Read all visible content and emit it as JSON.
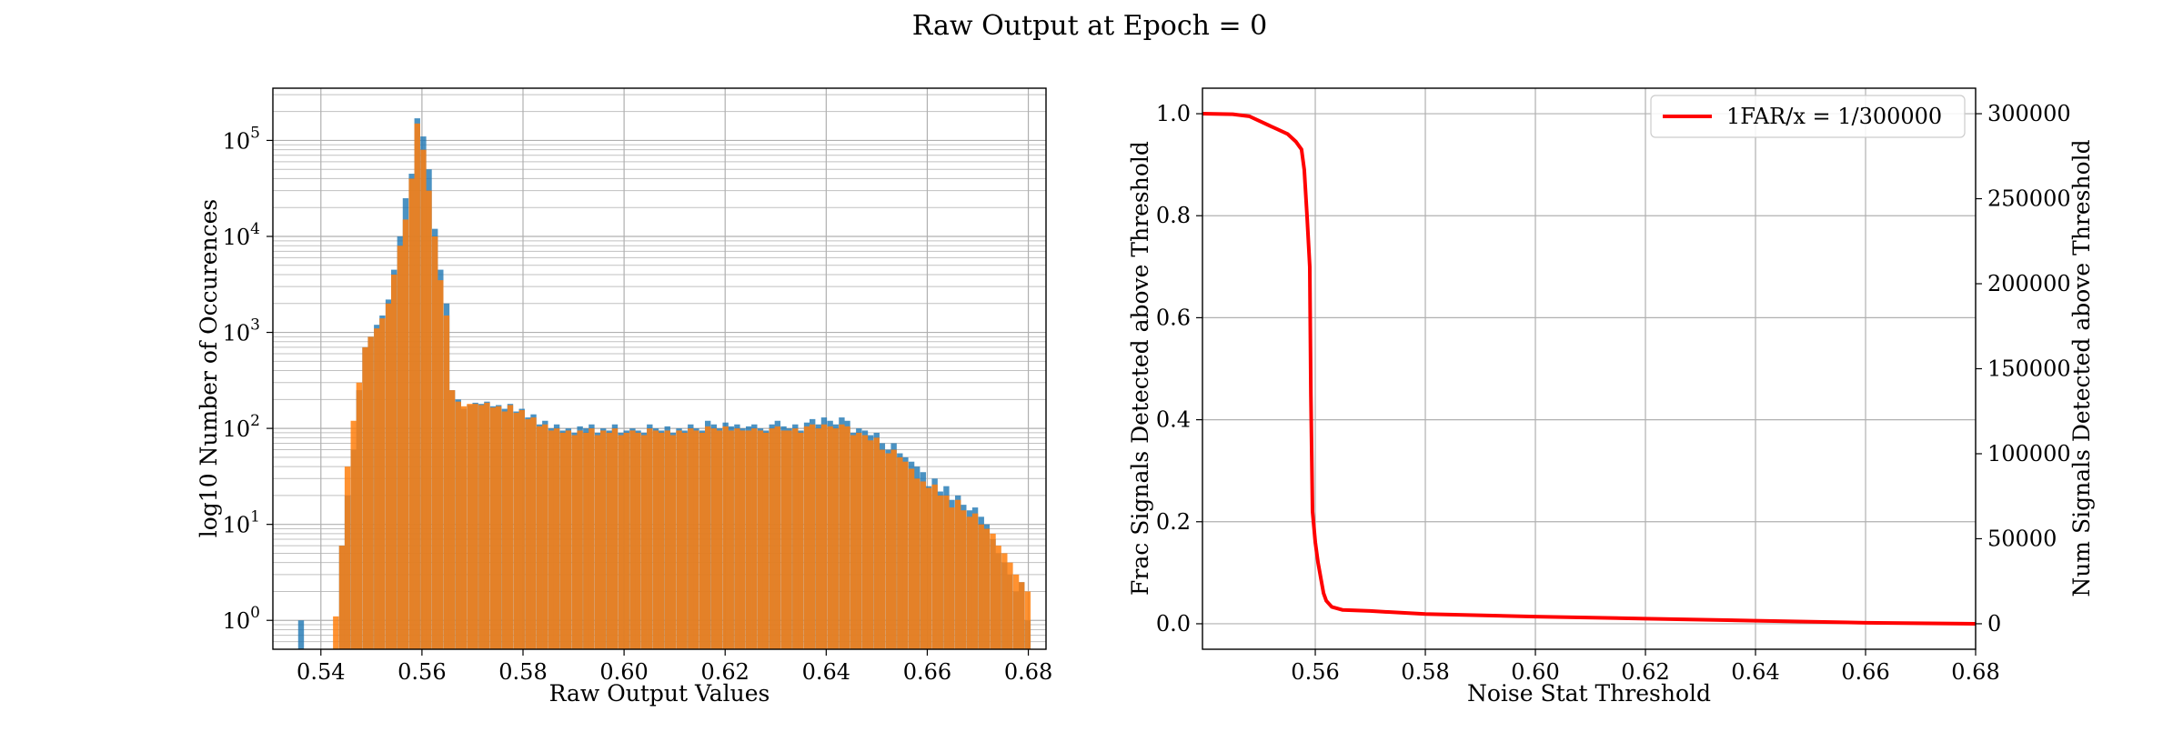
{
  "figure": {
    "suptitle": "Raw Output at Epoch = 0"
  },
  "colors": {
    "hist_blue": "#1f77b4",
    "hist_orange": "#ff7f0e",
    "curve_red": "#ff0000",
    "grid": "#b0b0b0"
  },
  "chart_data": [
    {
      "type": "bar",
      "subtype": "histogram",
      "title": "",
      "xlabel": "Raw Output Values",
      "ylabel": "log10 Number of Occurences",
      "xlim": [
        0.5305,
        0.6835
      ],
      "ylim": [
        0.5,
        350000
      ],
      "y_scale": "log",
      "grid": true,
      "x_ticks": [
        "0.54",
        "0.56",
        "0.58",
        "0.60",
        "0.62",
        "0.64",
        "0.66",
        "0.68"
      ],
      "y_ticks": [
        {
          "base": "10",
          "exp": "0"
        },
        {
          "base": "10",
          "exp": "1"
        },
        {
          "base": "10",
          "exp": "2"
        },
        {
          "base": "10",
          "exp": "3"
        },
        {
          "base": "10",
          "exp": "4"
        },
        {
          "base": "10",
          "exp": "5"
        }
      ],
      "bin_width": 0.00115,
      "series": [
        {
          "color": "#1f77b4",
          "bins": [
            [
              0.5355,
              1
            ],
            [
              0.5436,
              6
            ],
            [
              0.5447,
              20
            ],
            [
              0.5459,
              60
            ],
            [
              0.547,
              250
            ],
            [
              0.5482,
              700
            ],
            [
              0.5493,
              900
            ],
            [
              0.5505,
              1200
            ],
            [
              0.5516,
              1500
            ],
            [
              0.5528,
              2200
            ],
            [
              0.5539,
              4500
            ],
            [
              0.5551,
              10000
            ],
            [
              0.5562,
              25000
            ],
            [
              0.5574,
              45000
            ],
            [
              0.5585,
              170000
            ],
            [
              0.5597,
              110000
            ],
            [
              0.5608,
              50000
            ],
            [
              0.562,
              12000
            ],
            [
              0.5631,
              4500
            ],
            [
              0.5643,
              2000
            ],
            [
              0.5654,
              250
            ],
            [
              0.5666,
              200
            ],
            [
              0.5677,
              160
            ],
            [
              0.5689,
              175
            ],
            [
              0.57,
              185
            ],
            [
              0.5712,
              180
            ],
            [
              0.5723,
              190
            ],
            [
              0.5735,
              170
            ],
            [
              0.5746,
              175
            ],
            [
              0.5758,
              160
            ],
            [
              0.5769,
              180
            ],
            [
              0.5781,
              150
            ],
            [
              0.5792,
              160
            ],
            [
              0.5804,
              130
            ],
            [
              0.5815,
              140
            ],
            [
              0.5827,
              110
            ],
            [
              0.5838,
              120
            ],
            [
              0.585,
              100
            ],
            [
              0.5861,
              110
            ],
            [
              0.5873,
              95
            ],
            [
              0.5884,
              100
            ],
            [
              0.5896,
              90
            ],
            [
              0.5907,
              105
            ],
            [
              0.5919,
              100
            ],
            [
              0.593,
              110
            ],
            [
              0.5942,
              90
            ],
            [
              0.5953,
              100
            ],
            [
              0.5965,
              95
            ],
            [
              0.5976,
              110
            ],
            [
              0.5988,
              90
            ],
            [
              0.5999,
              95
            ],
            [
              0.6011,
              100
            ],
            [
              0.6022,
              95
            ],
            [
              0.6034,
              90
            ],
            [
              0.6045,
              110
            ],
            [
              0.6057,
              100
            ],
            [
              0.6068,
              95
            ],
            [
              0.608,
              105
            ],
            [
              0.6091,
              90
            ],
            [
              0.6103,
              100
            ],
            [
              0.6114,
              95
            ],
            [
              0.6126,
              110
            ],
            [
              0.6137,
              100
            ],
            [
              0.6149,
              95
            ],
            [
              0.616,
              120
            ],
            [
              0.6172,
              110
            ],
            [
              0.6183,
              100
            ],
            [
              0.6195,
              115
            ],
            [
              0.6206,
              105
            ],
            [
              0.6218,
              110
            ],
            [
              0.6229,
              100
            ],
            [
              0.6241,
              105
            ],
            [
              0.6252,
              110
            ],
            [
              0.6264,
              100
            ],
            [
              0.6275,
              95
            ],
            [
              0.6287,
              110
            ],
            [
              0.6298,
              120
            ],
            [
              0.631,
              105
            ],
            [
              0.6321,
              100
            ],
            [
              0.6333,
              110
            ],
            [
              0.6344,
              95
            ],
            [
              0.6356,
              115
            ],
            [
              0.6367,
              125
            ],
            [
              0.6379,
              110
            ],
            [
              0.639,
              130
            ],
            [
              0.6402,
              120
            ],
            [
              0.6413,
              110
            ],
            [
              0.6425,
              130
            ],
            [
              0.6436,
              120
            ],
            [
              0.6448,
              90
            ],
            [
              0.6459,
              100
            ],
            [
              0.6471,
              95
            ],
            [
              0.6482,
              85
            ],
            [
              0.6494,
              90
            ],
            [
              0.6505,
              70
            ],
            [
              0.6517,
              60
            ],
            [
              0.6528,
              70
            ],
            [
              0.654,
              55
            ],
            [
              0.6551,
              50
            ],
            [
              0.6563,
              45
            ],
            [
              0.6574,
              40
            ],
            [
              0.6586,
              35
            ],
            [
              0.6597,
              25
            ],
            [
              0.6609,
              30
            ],
            [
              0.662,
              22
            ],
            [
              0.6632,
              25
            ],
            [
              0.6643,
              18
            ],
            [
              0.6655,
              20
            ],
            [
              0.6666,
              16
            ],
            [
              0.6678,
              14
            ],
            [
              0.6689,
              15
            ],
            [
              0.6701,
              12
            ],
            [
              0.6712,
              10
            ],
            [
              0.6724,
              7
            ],
            [
              0.6735,
              5
            ],
            [
              0.6747,
              4
            ],
            [
              0.6758,
              3
            ],
            [
              0.677,
              2
            ],
            [
              0.6781,
              2.5
            ],
            [
              0.6793,
              1
            ]
          ]
        },
        {
          "color": "#ff7f0e",
          "bins": [
            [
              0.5424,
              1.1
            ],
            [
              0.5436,
              6
            ],
            [
              0.5447,
              40
            ],
            [
              0.5459,
              120
            ],
            [
              0.547,
              300
            ],
            [
              0.5482,
              700
            ],
            [
              0.5493,
              900
            ],
            [
              0.5505,
              1100
            ],
            [
              0.5516,
              1400
            ],
            [
              0.5528,
              2000
            ],
            [
              0.5539,
              4000
            ],
            [
              0.5551,
              8000
            ],
            [
              0.5562,
              15000
            ],
            [
              0.5574,
              40000
            ],
            [
              0.5585,
              150000
            ],
            [
              0.5597,
              80000
            ],
            [
              0.5608,
              30000
            ],
            [
              0.562,
              10000
            ],
            [
              0.5631,
              3500
            ],
            [
              0.5643,
              1500
            ],
            [
              0.5654,
              250
            ],
            [
              0.5666,
              190
            ],
            [
              0.5677,
              170
            ],
            [
              0.5689,
              180
            ],
            [
              0.57,
              180
            ],
            [
              0.5712,
              175
            ],
            [
              0.5723,
              185
            ],
            [
              0.5735,
              165
            ],
            [
              0.5746,
              170
            ],
            [
              0.5758,
              150
            ],
            [
              0.5769,
              175
            ],
            [
              0.5781,
              145
            ],
            [
              0.5792,
              155
            ],
            [
              0.5804,
              125
            ],
            [
              0.5815,
              130
            ],
            [
              0.5827,
              105
            ],
            [
              0.5838,
              110
            ],
            [
              0.585,
              95
            ],
            [
              0.5861,
              100
            ],
            [
              0.5873,
              90
            ],
            [
              0.5884,
              95
            ],
            [
              0.5896,
              85
            ],
            [
              0.5907,
              95
            ],
            [
              0.5919,
              90
            ],
            [
              0.593,
              100
            ],
            [
              0.5942,
              85
            ],
            [
              0.5953,
              95
            ],
            [
              0.5965,
              90
            ],
            [
              0.5976,
              100
            ],
            [
              0.5988,
              85
            ],
            [
              0.5999,
              90
            ],
            [
              0.6011,
              95
            ],
            [
              0.6022,
              90
            ],
            [
              0.6034,
              85
            ],
            [
              0.6045,
              100
            ],
            [
              0.6057,
              95
            ],
            [
              0.6068,
              90
            ],
            [
              0.608,
              95
            ],
            [
              0.6091,
              85
            ],
            [
              0.6103,
              95
            ],
            [
              0.6114,
              90
            ],
            [
              0.6126,
              100
            ],
            [
              0.6137,
              95
            ],
            [
              0.6149,
              90
            ],
            [
              0.616,
              105
            ],
            [
              0.6172,
              100
            ],
            [
              0.6183,
              95
            ],
            [
              0.6195,
              105
            ],
            [
              0.6206,
              95
            ],
            [
              0.6218,
              100
            ],
            [
              0.6229,
              95
            ],
            [
              0.6241,
              95
            ],
            [
              0.6252,
              100
            ],
            [
              0.6264,
              95
            ],
            [
              0.6275,
              90
            ],
            [
              0.6287,
              100
            ],
            [
              0.6298,
              105
            ],
            [
              0.631,
              95
            ],
            [
              0.6321,
              95
            ],
            [
              0.6333,
              100
            ],
            [
              0.6344,
              90
            ],
            [
              0.6356,
              105
            ],
            [
              0.6367,
              110
            ],
            [
              0.6379,
              100
            ],
            [
              0.639,
              110
            ],
            [
              0.6402,
              105
            ],
            [
              0.6413,
              100
            ],
            [
              0.6425,
              110
            ],
            [
              0.6436,
              105
            ],
            [
              0.6448,
              85
            ],
            [
              0.6459,
              90
            ],
            [
              0.6471,
              85
            ],
            [
              0.6482,
              75
            ],
            [
              0.6494,
              80
            ],
            [
              0.6505,
              60
            ],
            [
              0.6517,
              55
            ],
            [
              0.6528,
              60
            ],
            [
              0.654,
              50
            ],
            [
              0.6551,
              45
            ],
            [
              0.6563,
              38
            ],
            [
              0.6574,
              30
            ],
            [
              0.6586,
              28
            ],
            [
              0.6597,
              24
            ],
            [
              0.6609,
              26
            ],
            [
              0.662,
              20
            ],
            [
              0.6632,
              20
            ],
            [
              0.6643,
              15
            ],
            [
              0.6655,
              18
            ],
            [
              0.6666,
              14
            ],
            [
              0.6678,
              12
            ],
            [
              0.6689,
              13
            ],
            [
              0.6701,
              10
            ],
            [
              0.6712,
              9
            ],
            [
              0.6724,
              8
            ],
            [
              0.6735,
              6
            ],
            [
              0.6747,
              5
            ],
            [
              0.6758,
              4
            ],
            [
              0.677,
              3
            ],
            [
              0.6781,
              2.5
            ],
            [
              0.6793,
              2
            ]
          ]
        }
      ]
    },
    {
      "type": "line",
      "title": "",
      "xlabel": "Noise Stat Threshold",
      "ylabel": "Frac Signals Detected above Threshold",
      "y2label": "Num Signals Detected above Threshold",
      "xlim": [
        0.5395,
        0.68
      ],
      "ylim": [
        -0.05,
        1.05
      ],
      "y2lim": [
        -15000,
        315000
      ],
      "grid": true,
      "legend_position": "top-right",
      "x_ticks": [
        "0.56",
        "0.58",
        "0.60",
        "0.62",
        "0.64",
        "0.66",
        "0.68"
      ],
      "y_ticks": [
        "0.0",
        "0.2",
        "0.4",
        "0.6",
        "0.8",
        "1.0"
      ],
      "y2_ticks": [
        "0",
        "50000",
        "100000",
        "150000",
        "200000",
        "250000",
        "300000"
      ],
      "series": [
        {
          "name": "1FAR/x = 1/300000",
          "color": "#ff0000",
          "x": [
            0.5395,
            0.545,
            0.548,
            0.55,
            0.553,
            0.555,
            0.5565,
            0.5575,
            0.558,
            0.5585,
            0.559,
            0.5592,
            0.5595,
            0.56,
            0.5605,
            0.561,
            0.5615,
            0.562,
            0.563,
            0.565,
            0.57,
            0.58,
            0.6,
            0.62,
            0.64,
            0.66,
            0.68
          ],
          "y": [
            1.0,
            0.999,
            0.995,
            0.985,
            0.97,
            0.96,
            0.945,
            0.93,
            0.89,
            0.8,
            0.7,
            0.45,
            0.22,
            0.16,
            0.12,
            0.09,
            0.06,
            0.045,
            0.033,
            0.027,
            0.025,
            0.019,
            0.014,
            0.01,
            0.006,
            0.002,
            0.0
          ]
        }
      ]
    }
  ]
}
